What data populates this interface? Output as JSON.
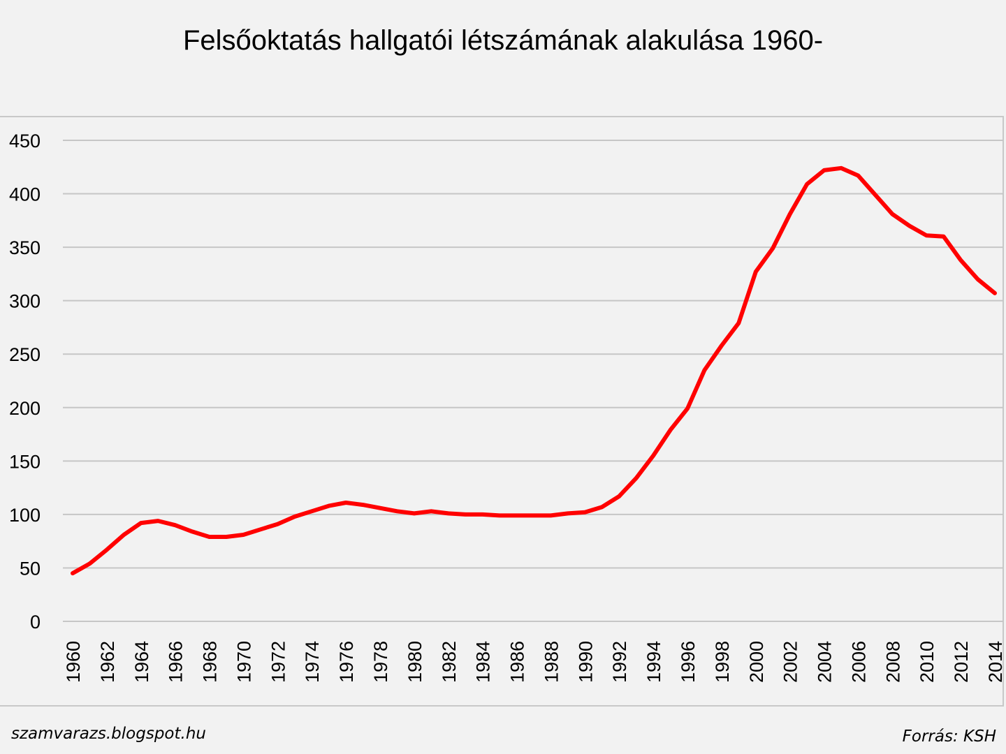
{
  "chart_data": {
    "type": "line",
    "title": "Felsőoktatás hallgatói létszámának alakulása 1960-",
    "xlabel": "",
    "ylabel": "",
    "ylim": [
      0,
      450
    ],
    "yticks": [
      "0",
      "50",
      "100",
      "150",
      "200",
      "250",
      "300",
      "350",
      "400",
      "450"
    ],
    "xticks": [
      "1960",
      "1962",
      "1964",
      "1966",
      "1968",
      "1970",
      "1972",
      "1974",
      "1976",
      "1978",
      "1980",
      "1982",
      "1984",
      "1986",
      "1988",
      "1990",
      "1992",
      "1994",
      "1996",
      "1998",
      "2000",
      "2002",
      "2004",
      "2006",
      "2008",
      "2010",
      "2012",
      "2014"
    ],
    "grid": true,
    "legend": "none",
    "line_color": "#ff0000",
    "x": [
      1960,
      1961,
      1962,
      1963,
      1964,
      1965,
      1966,
      1967,
      1968,
      1969,
      1970,
      1971,
      1972,
      1973,
      1974,
      1975,
      1976,
      1977,
      1978,
      1979,
      1980,
      1981,
      1982,
      1983,
      1984,
      1985,
      1986,
      1987,
      1988,
      1989,
      1990,
      1991,
      1992,
      1993,
      1994,
      1995,
      1996,
      1997,
      1998,
      1999,
      2000,
      2001,
      2002,
      2003,
      2004,
      2005,
      2006,
      2007,
      2008,
      2009,
      2010,
      2011,
      2012,
      2013,
      2014
    ],
    "series": [
      {
        "values": [
          45,
          54,
          67,
          81,
          92,
          94,
          90,
          84,
          79,
          79,
          81,
          86,
          91,
          98,
          103,
          108,
          111,
          109,
          106,
          103,
          101,
          103,
          101,
          100,
          100,
          99,
          99,
          99,
          99,
          101,
          102,
          107,
          117,
          134,
          155,
          179,
          199,
          235,
          258,
          279,
          327,
          349,
          381,
          409,
          422,
          424,
          417,
          399,
          381,
          370,
          361,
          360,
          338,
          320,
          307
        ]
      }
    ]
  },
  "footer": {
    "left": "szamvarazs.blogspot.hu",
    "right": "Forrás: KSH"
  }
}
